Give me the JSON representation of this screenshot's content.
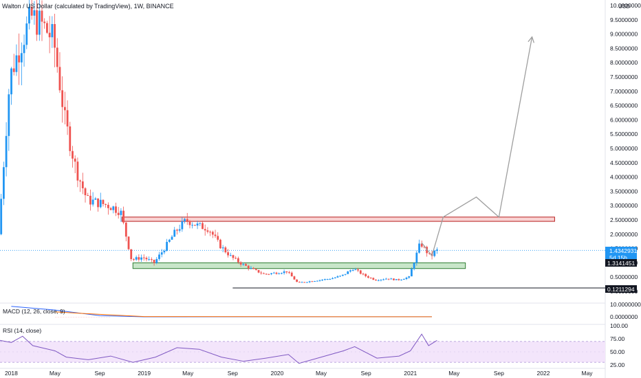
{
  "header": {
    "title": "Walton / US Dollar (calculated by TradingView), 1W, BINANCE",
    "currency": "USD"
  },
  "price_axis": {
    "ticks": [
      "10.0000000",
      "9.5000000",
      "9.0000000",
      "8.5000000",
      "8.0000000",
      "7.5000000",
      "7.0000000",
      "6.5000000",
      "6.0000000",
      "5.5000000",
      "5.0000000",
      "4.5000000",
      "4.0000000",
      "3.5000000",
      "3.0000000",
      "2.5000000",
      "2.0000000",
      "1.5000000",
      "1.0000000",
      "0.5000000",
      "0.0000000"
    ],
    "last_price": "1.4342931",
    "countdown": "5d 15h",
    "level_1": "1.3141451",
    "level_2": "0.1211294"
  },
  "time_axis": {
    "labels": [
      "2018",
      "May",
      "Sep",
      "2019",
      "May",
      "Sep",
      "2020",
      "May",
      "Sep",
      "2021",
      "May",
      "Sep",
      "2022",
      "May"
    ]
  },
  "macd": {
    "title": "MACD (12, 26, close, 9)",
    "ticks": [
      "10.0000000",
      "0.0000000"
    ]
  },
  "rsi": {
    "title": "RSI (14, close)",
    "ticks": [
      "100.00",
      "75.00",
      "50.00",
      "25.00"
    ]
  },
  "colors": {
    "up": "#2196f3",
    "down": "#ef5350",
    "macd_line": "#2962ff",
    "signal_line": "#ff6d00",
    "rsi_line": "#7e57c2",
    "rsi_band": "#f3e5fb",
    "resistance_fill": "#f9d3d3",
    "resistance_border": "#b71c1c",
    "support_fill": "#c8e6c9",
    "support_border": "#2e7d32",
    "projection": "#9e9e9e",
    "label_bg": "#131722",
    "last_price_bg": "#2196f3"
  },
  "chart_data": {
    "type": "candlestick",
    "title": "Walton / US Dollar (calculated by TradingView), 1W, BINANCE",
    "y_axis_unit": "USD",
    "ylim": [
      0,
      10
    ],
    "x_range": [
      "2017-12",
      "2022-06"
    ],
    "zones": [
      {
        "role": "resistance",
        "low": 2.45,
        "high": 2.6,
        "start": "2018-11",
        "end": "2022-02"
      },
      {
        "role": "support",
        "low": 0.8,
        "high": 1.0,
        "start": "2018-12",
        "end": "2021-06"
      }
    ],
    "levels": [
      {
        "value": 1.4342931,
        "label": "1.4342931"
      },
      {
        "value": 1.3141451,
        "label": "1.3141451"
      },
      {
        "value": 0.1211294,
        "label": "0.1211294"
      }
    ],
    "projection_path": [
      {
        "date": "2021-02",
        "price": 1.7
      },
      {
        "date": "2021-03",
        "price": 1.25
      },
      {
        "date": "2021-04",
        "price": 2.6
      },
      {
        "date": "2021-07",
        "price": 3.3
      },
      {
        "date": "2021-09",
        "price": 2.6
      },
      {
        "date": "2021-12",
        "price": 8.9
      }
    ],
    "price_path": [
      {
        "date": "2017-12",
        "price": 2.0
      },
      {
        "date": "2018-01",
        "price": 7.5
      },
      {
        "date": "2018-02",
        "price": 8.7
      },
      {
        "date": "2018-03",
        "price": 9.6
      },
      {
        "date": "2018-04",
        "price": 9.3
      },
      {
        "date": "2018-05",
        "price": 8.8
      },
      {
        "date": "2018-06",
        "price": 6.0
      },
      {
        "date": "2018-07",
        "price": 4.3
      },
      {
        "date": "2018-08",
        "price": 3.2
      },
      {
        "date": "2018-09",
        "price": 3.1
      },
      {
        "date": "2018-10",
        "price": 3.0
      },
      {
        "date": "2018-11",
        "price": 2.8
      },
      {
        "date": "2018-12",
        "price": 1.1
      },
      {
        "date": "2019-01",
        "price": 1.2
      },
      {
        "date": "2019-02",
        "price": 1.0
      },
      {
        "date": "2019-03",
        "price": 1.5
      },
      {
        "date": "2019-04",
        "price": 2.1
      },
      {
        "date": "2019-05",
        "price": 2.5
      },
      {
        "date": "2019-06",
        "price": 2.3
      },
      {
        "date": "2019-07",
        "price": 2.2
      },
      {
        "date": "2019-08",
        "price": 1.6
      },
      {
        "date": "2019-09",
        "price": 1.2
      },
      {
        "date": "2019-10",
        "price": 0.95
      },
      {
        "date": "2019-11",
        "price": 0.75
      },
      {
        "date": "2019-12",
        "price": 0.6
      },
      {
        "date": "2020-01",
        "price": 0.65
      },
      {
        "date": "2020-02",
        "price": 0.7
      },
      {
        "date": "2020-03",
        "price": 0.3
      },
      {
        "date": "2020-04",
        "price": 0.35
      },
      {
        "date": "2020-05",
        "price": 0.4
      },
      {
        "date": "2020-06",
        "price": 0.45
      },
      {
        "date": "2020-07",
        "price": 0.55
      },
      {
        "date": "2020-08",
        "price": 0.8
      },
      {
        "date": "2020-09",
        "price": 0.55
      },
      {
        "date": "2020-10",
        "price": 0.4
      },
      {
        "date": "2020-11",
        "price": 0.45
      },
      {
        "date": "2020-12",
        "price": 0.4
      },
      {
        "date": "2021-01",
        "price": 0.5
      },
      {
        "date": "2021-02",
        "price": 1.7
      },
      {
        "date": "2021-03",
        "price": 1.2
      },
      {
        "date": "2021-03-15",
        "price": 1.43
      }
    ],
    "macd": {
      "ticks": [
        10,
        0
      ],
      "macd_path": [
        {
          "date": "2018-01",
          "value": 8.5
        },
        {
          "date": "2018-05",
          "value": 5.5
        },
        {
          "date": "2018-09",
          "value": 1.0
        },
        {
          "date": "2019-01",
          "value": 0.0
        },
        {
          "date": "2021-03",
          "value": 0.1
        }
      ],
      "signal_path": [
        {
          "date": "2018-05",
          "value": 4.0
        },
        {
          "date": "2018-09",
          "value": 2.0
        },
        {
          "date": "2019-01",
          "value": 0.2
        },
        {
          "date": "2021-03",
          "value": 0.05
        }
      ]
    },
    "rsi": {
      "ticks": [
        100,
        75,
        50,
        25
      ],
      "band": [
        30,
        70
      ],
      "path": [
        {
          "date": "2017-12",
          "value": 72
        },
        {
          "date": "2018-01",
          "value": 68
        },
        {
          "date": "2018-02",
          "value": 80
        },
        {
          "date": "2018-03",
          "value": 62
        },
        {
          "date": "2018-05",
          "value": 52
        },
        {
          "date": "2018-06",
          "value": 40
        },
        {
          "date": "2018-08",
          "value": 35
        },
        {
          "date": "2018-10",
          "value": 42
        },
        {
          "date": "2018-12",
          "value": 30
        },
        {
          "date": "2019-02",
          "value": 40
        },
        {
          "date": "2019-04",
          "value": 58
        },
        {
          "date": "2019-06",
          "value": 55
        },
        {
          "date": "2019-08",
          "value": 40
        },
        {
          "date": "2019-10",
          "value": 32
        },
        {
          "date": "2019-12",
          "value": 38
        },
        {
          "date": "2020-02",
          "value": 45
        },
        {
          "date": "2020-03",
          "value": 28
        },
        {
          "date": "2020-05",
          "value": 40
        },
        {
          "date": "2020-07",
          "value": 52
        },
        {
          "date": "2020-08",
          "value": 60
        },
        {
          "date": "2020-10",
          "value": 38
        },
        {
          "date": "2020-12",
          "value": 42
        },
        {
          "date": "2021-01",
          "value": 52
        },
        {
          "date": "2021-02",
          "value": 84
        },
        {
          "date": "2021-02-20",
          "value": 62
        },
        {
          "date": "2021-03-15",
          "value": 72
        }
      ]
    }
  }
}
